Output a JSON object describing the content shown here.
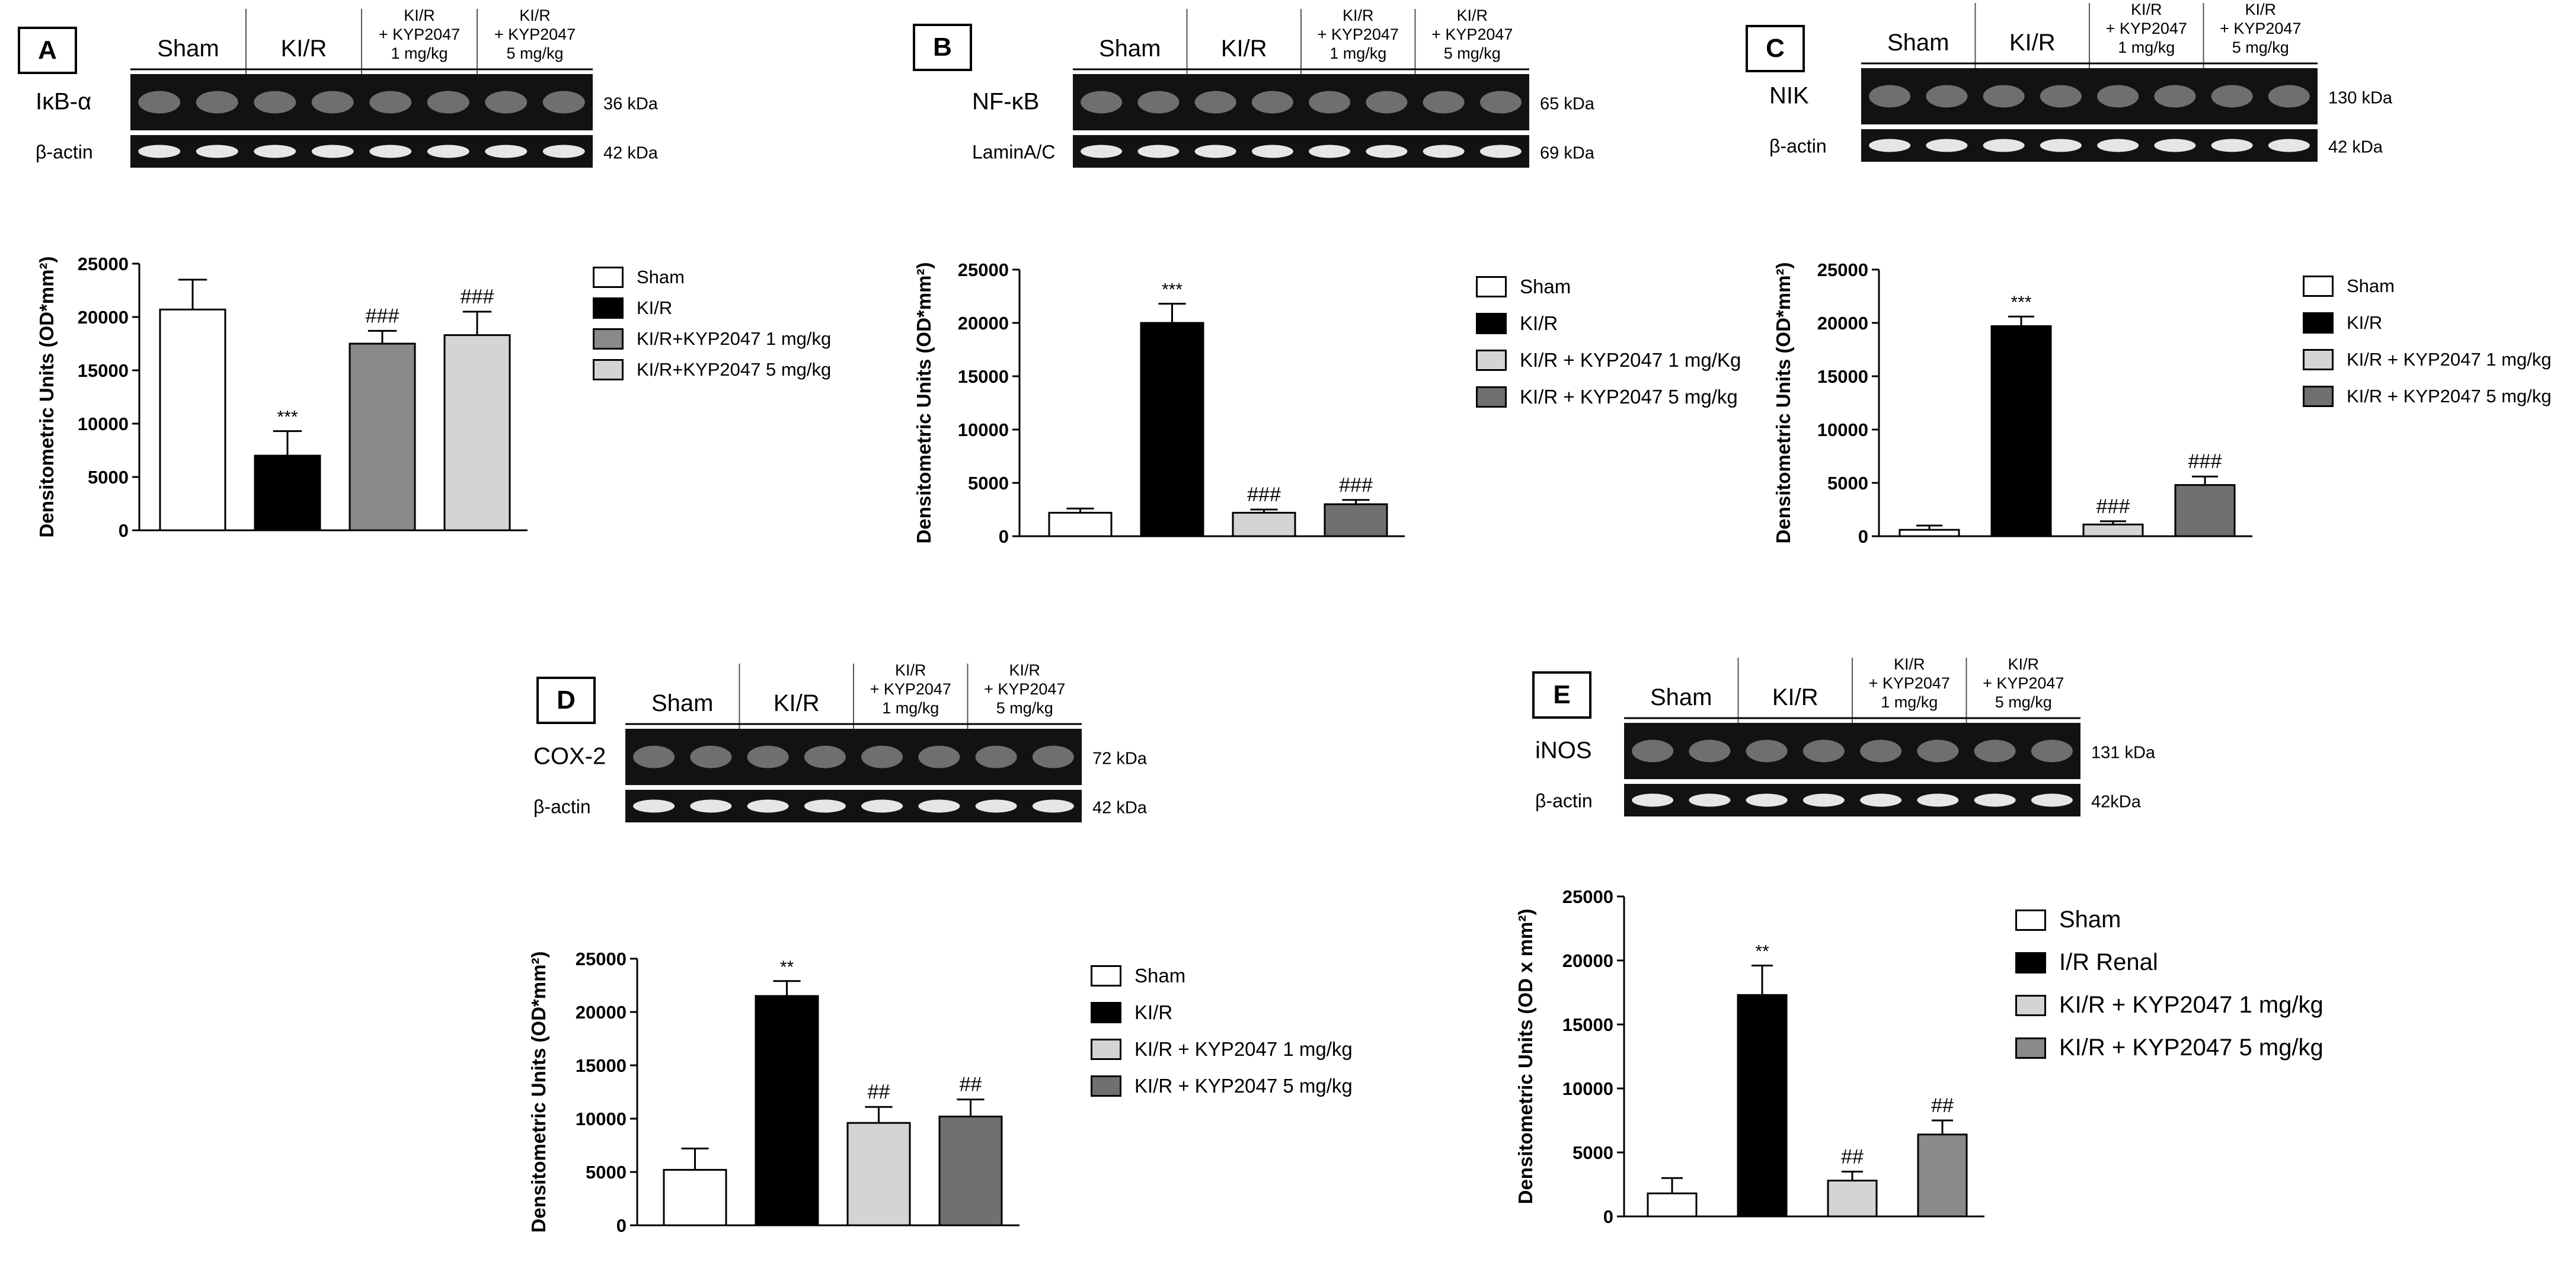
{
  "colors": {
    "white": "#ffffff",
    "black": "#000000",
    "gray_mid": "#8a8a8a",
    "gray_light": "#d4d4d4",
    "gray_dark": "#707070",
    "blot_bg": "#121212"
  },
  "panels": [
    {
      "id": "A",
      "letter": "A",
      "lanes": [
        "Sham",
        "KI/R",
        "KI/R\n+ KYP2047\n1 mg/kg",
        "KI/R\n+ KYP2047\n5 mg/kg"
      ],
      "bands": [
        {
          "name": "IκB-α",
          "size": "36 kDa"
        },
        {
          "name": "β-actin",
          "size": "42 kDa"
        }
      ],
      "legend": [
        "Sham",
        "KI/R",
        "KI/R+KYP2047 1 mg/kg",
        "KI/R+KYP2047 5 mg/kg"
      ]
    },
    {
      "id": "B",
      "letter": "B",
      "lanes": [
        "Sham",
        "KI/R",
        "KI/R\n+ KYP2047\n1 mg/kg",
        "KI/R\n+ KYP2047\n5 mg/kg"
      ],
      "bands": [
        {
          "name": "NF-κB",
          "size": "65 kDa"
        },
        {
          "name": "LaminA/C",
          "size": "69 kDa"
        }
      ],
      "legend": [
        "Sham",
        "KI/R",
        "KI/R + KYP2047 1 mg/Kg",
        "KI/R + KYP2047 5 mg/kg"
      ]
    },
    {
      "id": "C",
      "letter": "C",
      "lanes": [
        "Sham",
        "KI/R",
        "KI/R\n+ KYP2047\n1 mg/kg",
        "KI/R\n+ KYP2047\n5 mg/kg"
      ],
      "bands": [
        {
          "name": "NIK",
          "size": "130 kDa"
        },
        {
          "name": "β-actin",
          "size": "42 kDa"
        }
      ],
      "legend": [
        "Sham",
        "KI/R",
        "KI/R + KYP2047 1 mg/kg",
        "KI/R + KYP2047 5 mg/kg"
      ]
    },
    {
      "id": "D",
      "letter": "D",
      "lanes": [
        "Sham",
        "KI/R",
        "KI/R\n+ KYP2047\n1 mg/kg",
        "KI/R\n+ KYP2047\n5 mg/kg"
      ],
      "bands": [
        {
          "name": "COX-2",
          "size": "72 kDa"
        },
        {
          "name": "β-actin",
          "size": "42 kDa"
        }
      ],
      "legend": [
        "Sham",
        "KI/R",
        "KI/R + KYP2047 1 mg/kg",
        "KI/R + KYP2047 5 mg/kg"
      ]
    },
    {
      "id": "E",
      "letter": "E",
      "lanes": [
        "Sham",
        "KI/R",
        "KI/R\n+ KYP2047\n1 mg/kg",
        "KI/R\n+ KYP2047\n5 mg/kg"
      ],
      "bands": [
        {
          "name": "iNOS",
          "size": "131 kDa"
        },
        {
          "name": "β-actin",
          "size": "42kDa"
        }
      ],
      "legend": [
        "Sham",
        "I/R Renal",
        "KI/R + KYP2047 1 mg/kg",
        "KI/R + KYP2047 5 mg/kg"
      ]
    }
  ],
  "chart_data": [
    {
      "panel": "A",
      "type": "bar",
      "categories": [
        "Sham",
        "KI/R",
        "KI/R+KYP2047 1 mg/kg",
        "KI/R+KYP2047 5 mg/kg"
      ],
      "values": [
        20700,
        7000,
        17500,
        18300
      ],
      "errors": [
        2800,
        2300,
        1200,
        2200
      ],
      "annotations": [
        "",
        "***",
        "###",
        "###"
      ],
      "fills": [
        "#ffffff",
        "#000000",
        "#8a8a8a",
        "#d4d4d4"
      ],
      "ylabel": "Densitometric Units (OD*mm²)",
      "ylim": [
        0,
        25000
      ],
      "yticks": [
        0,
        5000,
        10000,
        15000,
        20000,
        25000
      ],
      "tick_labels": [
        "0",
        "5000",
        "10000",
        "15000",
        "20000",
        "25000"
      ],
      "legend_position": "right",
      "grid": false
    },
    {
      "panel": "B",
      "type": "bar",
      "categories": [
        "Sham",
        "KI/R",
        "KI/R + KYP2047 1 mg/Kg",
        "KI/R + KYP2047 5 mg/kg"
      ],
      "values": [
        2200,
        20000,
        2200,
        3000
      ],
      "errors": [
        400,
        1800,
        300,
        400
      ],
      "annotations": [
        "",
        "***",
        "###",
        "###"
      ],
      "fills": [
        "#ffffff",
        "#000000",
        "#d4d4d4",
        "#707070"
      ],
      "ylabel": "Densitometric Units (OD*mm²)",
      "ylim": [
        0,
        25000
      ],
      "yticks": [
        0,
        5000,
        10000,
        15000,
        20000,
        25000
      ],
      "tick_labels": [
        "0",
        "5000",
        "10000",
        "15000",
        "20000",
        "25000"
      ],
      "legend_position": "right",
      "grid": false
    },
    {
      "panel": "C",
      "type": "bar",
      "categories": [
        "Sham",
        "KI/R",
        "KI/R + KYP2047 1 mg/kg",
        "KI/R + KYP2047 5 mg/kg"
      ],
      "values": [
        600,
        19700,
        1100,
        4800
      ],
      "errors": [
        400,
        900,
        300,
        800
      ],
      "annotations": [
        "",
        "***",
        "###",
        "###"
      ],
      "fills": [
        "#ffffff",
        "#000000",
        "#d4d4d4",
        "#707070"
      ],
      "ylabel": "Densitometric Units (OD*mm²)",
      "ylim": [
        0,
        25000
      ],
      "yticks": [
        0,
        5000,
        10000,
        15000,
        20000,
        25000
      ],
      "tick_labels": [
        "0",
        "5000",
        "10000",
        "15000",
        "20000",
        "25000"
      ],
      "legend_position": "right",
      "grid": false
    },
    {
      "panel": "D",
      "type": "bar",
      "categories": [
        "Sham",
        "KI/R",
        "KI/R + KYP2047 1 mg/kg",
        "KI/R + KYP2047 5 mg/kg"
      ],
      "values": [
        5200,
        21500,
        9600,
        10200
      ],
      "errors": [
        2000,
        1400,
        1500,
        1600
      ],
      "annotations": [
        "",
        "**",
        "##",
        "##"
      ],
      "fills": [
        "#ffffff",
        "#000000",
        "#d4d4d4",
        "#707070"
      ],
      "ylabel": "Densitometric Units (OD*mm²)",
      "ylim": [
        0,
        25000
      ],
      "yticks": [
        0,
        5000,
        10000,
        15000,
        20000,
        25000
      ],
      "tick_labels": [
        "0",
        "5000",
        "10000",
        "15000",
        "20000",
        "25000"
      ],
      "legend_position": "right",
      "grid": false
    },
    {
      "panel": "E",
      "type": "bar",
      "categories": [
        "Sham",
        "I/R Renal",
        "KI/R + KYP2047 1 mg/kg",
        "KI/R + KYP2047 5 mg/kg"
      ],
      "values": [
        1800,
        17300,
        2800,
        6400
      ],
      "errors": [
        1200,
        2300,
        700,
        1100
      ],
      "annotations": [
        "",
        "**",
        "##",
        "##"
      ],
      "fills": [
        "#ffffff",
        "#000000",
        "#d4d4d4",
        "#8a8a8a"
      ],
      "ylabel": "Densitometric Units (OD x mm²)",
      "ylim": [
        0,
        25000
      ],
      "yticks": [
        0,
        5000,
        10000,
        15000,
        20000,
        25000
      ],
      "tick_labels": [
        "0",
        "5000",
        "10000",
        "15000",
        "20000",
        "25000"
      ],
      "legend_position": "right",
      "grid": false
    }
  ]
}
